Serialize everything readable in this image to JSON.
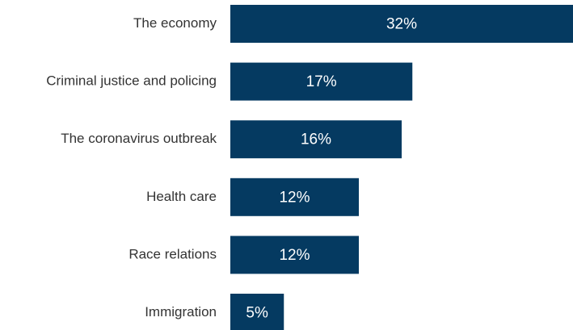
{
  "chart_data": {
    "type": "bar",
    "orientation": "horizontal",
    "categories": [
      "The economy",
      "Criminal justice and policing",
      "The coronavirus outbreak",
      "Health care",
      "Race relations",
      "Immigration"
    ],
    "values": [
      32,
      17,
      16,
      12,
      12,
      5
    ],
    "value_labels": [
      "32%",
      "17%",
      "16%",
      "12%",
      "12%",
      "5%"
    ],
    "title": "",
    "xlabel": "",
    "ylabel": "",
    "xlim": [
      0,
      32
    ],
    "grid": false,
    "legend": "none",
    "colors": {
      "bar": "#053a61",
      "value_text": "#ffffff",
      "category_text": "#333333"
    }
  }
}
